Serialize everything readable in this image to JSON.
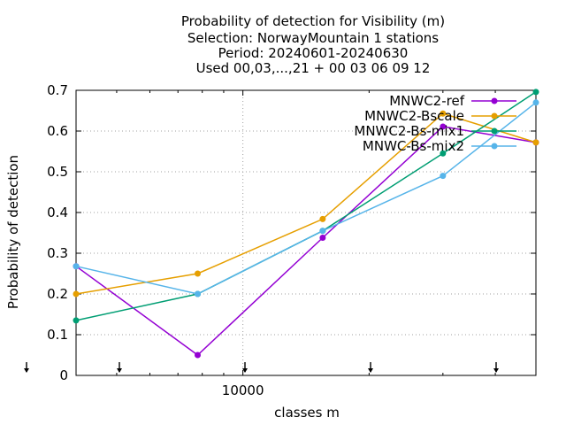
{
  "chart_data": {
    "type": "line",
    "title_lines": [
      "Probability of detection  for Visibility (m)",
      "Selection: NorwayMountain      1 stations",
      "Period: 20240601-20240630",
      "Used 00,03,...,21 + 00 03 06 09 12"
    ],
    "xlabel": "classes m",
    "ylabel": "Probability of detection",
    "x_scale": "log",
    "xlim": [
      4000,
      50000
    ],
    "ylim": [
      0,
      0.7
    ],
    "x_tick_labels": [
      {
        "value": 10000,
        "label": "10000"
      }
    ],
    "y_ticks": [
      {
        "value": 0,
        "label": "0"
      },
      {
        "value": 0.1,
        "label": "0.1"
      },
      {
        "value": 0.2,
        "label": "0.2"
      },
      {
        "value": 0.3,
        "label": "0.3"
      },
      {
        "value": 0.4,
        "label": "0.4"
      },
      {
        "value": 0.5,
        "label": "0.5"
      },
      {
        "value": 0.6,
        "label": "0.6"
      },
      {
        "value": 0.7,
        "label": "0.7"
      }
    ],
    "grid": true,
    "legend_position": "top-right",
    "below_axis_markers": [
      3000,
      5000,
      10000,
      20000,
      35000
    ],
    "series": [
      {
        "name": "MNWC2-ref",
        "color": "#9400d3",
        "x": [
          4000,
          7800,
          15500,
          30000,
          50000
        ],
        "y": [
          0.268,
          0.05,
          0.338,
          0.611,
          0.572
        ]
      },
      {
        "name": "MNWC2-Bscale",
        "color": "#e69f00",
        "x": [
          4000,
          7800,
          15500,
          30000,
          50000
        ],
        "y": [
          0.2,
          0.25,
          0.384,
          0.643,
          0.572
        ]
      },
      {
        "name": "MNWC2-Bs-mix1",
        "color": "#009e73",
        "x": [
          4000,
          7800,
          15500,
          30000,
          50000
        ],
        "y": [
          0.135,
          0.2,
          0.355,
          0.545,
          0.696
        ]
      },
      {
        "name": "MNWC-Bs-mix2",
        "color": "#56b4e9",
        "x": [
          4000,
          7800,
          15500,
          30000,
          50000
        ],
        "y": [
          0.268,
          0.2,
          0.355,
          0.49,
          0.67
        ]
      }
    ]
  }
}
